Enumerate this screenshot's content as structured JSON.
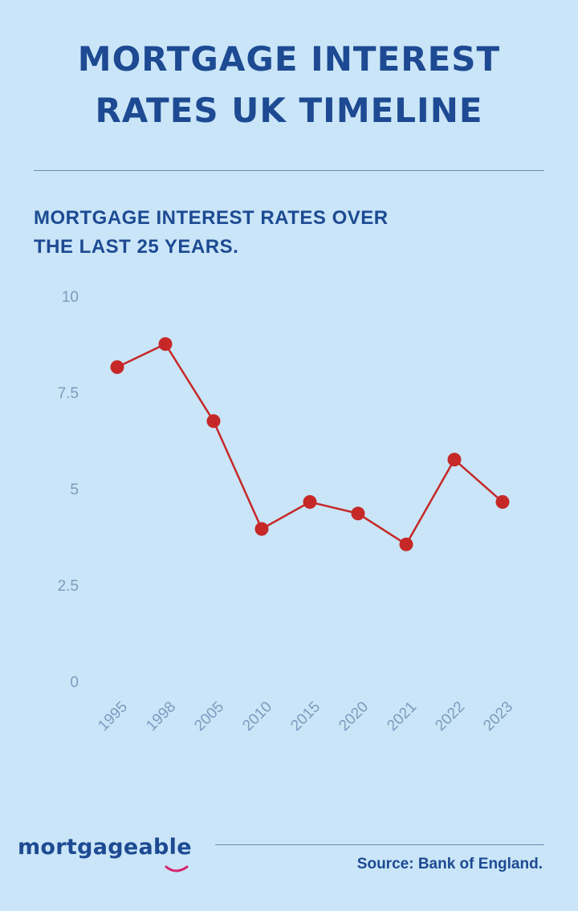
{
  "chart_data": {
    "type": "line",
    "title": "MORTGAGE INTEREST RATES UK TIMELINE",
    "subtitle": "MORTGAGE INTEREST RATES OVER THE LAST 25 YEARS.",
    "categories": [
      "1995",
      "1998",
      "2005",
      "2010",
      "2015",
      "2020",
      "2021",
      "2022",
      "2023"
    ],
    "values": [
      8.2,
      8.8,
      6.8,
      4.0,
      4.7,
      4.4,
      3.6,
      5.8,
      4.7
    ],
    "color": "#c62828",
    "ylim": [
      0,
      10
    ],
    "yticks": [
      0,
      2.5,
      5,
      7.5,
      10
    ],
    "grid": false,
    "brand": "mortgageable",
    "source": "Source: Bank of England."
  }
}
